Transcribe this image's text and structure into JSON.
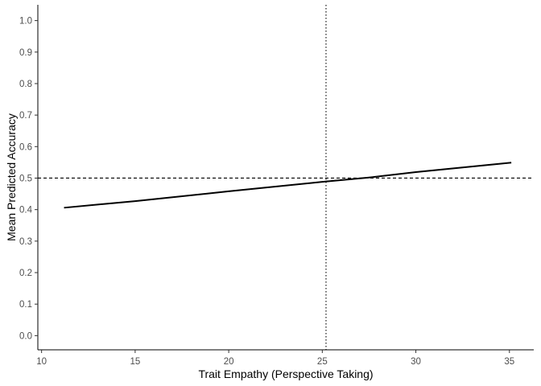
{
  "chart_data": {
    "type": "line",
    "title": "",
    "xlabel": "Trait Empathy (Perspective Taking)",
    "ylabel": "Mean Predicted Accuracy",
    "xlim": [
      9.8,
      36.3
    ],
    "ylim": [
      -0.045,
      1.05
    ],
    "x_ticks": [
      10,
      15,
      20,
      25,
      30,
      35
    ],
    "x_tick_labels": [
      "10",
      "15",
      "20",
      "25",
      "30",
      "35"
    ],
    "y_ticks": [
      0.0,
      0.1,
      0.2,
      0.3,
      0.4,
      0.5,
      0.6,
      0.7,
      0.8,
      0.9,
      1.0
    ],
    "y_tick_labels": [
      "0.0",
      "0.1",
      "0.2",
      "0.3",
      "0.4",
      "0.5",
      "0.6",
      "0.7",
      "0.8",
      "0.9",
      "1.0"
    ],
    "grid": false,
    "legend": "none",
    "series": [
      {
        "x": [
          11.2,
          15,
          20,
          25,
          27.5,
          30,
          35.1
        ],
        "y": [
          0.406,
          0.427,
          0.458,
          0.488,
          0.502,
          0.519,
          0.549
        ],
        "color": "#000000"
      }
    ],
    "reference_lines": [
      {
        "orientation": "horizontal",
        "value": 0.5,
        "style": "dashed",
        "color": "#000000"
      },
      {
        "orientation": "vertical",
        "value": 25.2,
        "style": "dotted",
        "color": "#000000"
      }
    ]
  }
}
